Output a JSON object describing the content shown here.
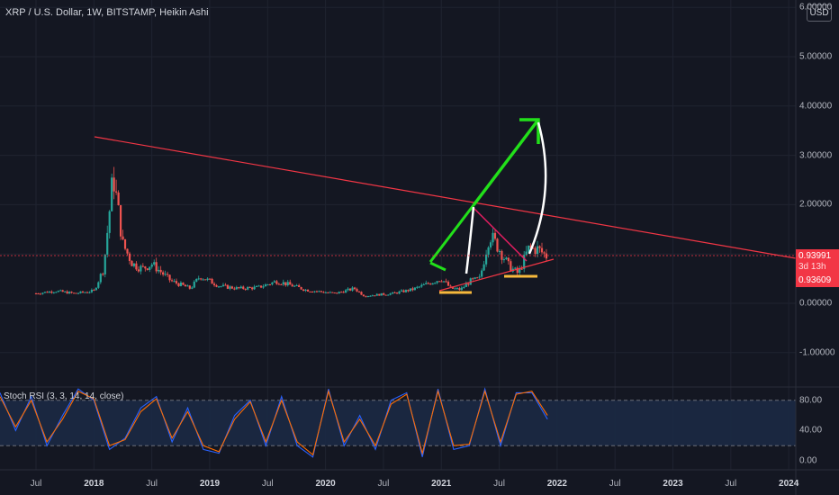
{
  "header": {
    "title": "XRP / U.S. Dollar, 1W, BITSTAMP, Heikin Ashi",
    "currency": "USD"
  },
  "price_axis": {
    "ticks": [
      "6.00000",
      "5.00000",
      "4.00000",
      "3.00000",
      "2.00000",
      "0.00000",
      "-1.00000"
    ]
  },
  "price_labels": {
    "last": "0.93991",
    "countdown": "3d 13h",
    "low": "0.93609"
  },
  "oscillator": {
    "title": "Stoch RSI (3, 3, 14, 14, close)",
    "ticks": [
      "80.00",
      "40.00",
      "0.00"
    ]
  },
  "time_axis": {
    "ticks": [
      "Jul",
      "2018",
      "Jul",
      "2019",
      "Jul",
      "2020",
      "Jul",
      "2021",
      "Jul",
      "2022",
      "Jul",
      "2023",
      "Jul",
      "2024"
    ]
  },
  "colors": {
    "background": "#141722",
    "up_candle": "#26a69a",
    "down_candle": "#ef5350",
    "trendline": "#f23645",
    "projection_arrow": "#22e01a",
    "curve": "#ffffff",
    "support_marks": "#f7b93c",
    "stoch_k": "#2962ff",
    "stoch_d": "#ff6d00"
  },
  "chart_data": [
    {
      "type": "candlestick",
      "title": "XRP / U.S. Dollar, 1W, BITSTAMP, Heikin Ashi",
      "xlabel": "",
      "ylabel": "",
      "ylim": [
        -1.6,
        6.0
      ],
      "x_range": [
        "2017-05",
        "2024-01"
      ],
      "grid": true,
      "series": [
        {
          "name": "XRP / U.S. Dollar",
          "points": [
            {
              "date": "2017-05",
              "value": 0.2
            },
            {
              "date": "2017-07",
              "value": 0.25
            },
            {
              "date": "2017-09",
              "value": 0.2
            },
            {
              "date": "2017-11",
              "value": 0.25
            },
            {
              "date": "2017-12",
              "value": 0.7
            },
            {
              "date": "2018-01",
              "value": 2.6
            },
            {
              "date": "2018-02",
              "value": 1.2
            },
            {
              "date": "2018-03",
              "value": 0.8
            },
            {
              "date": "2018-04",
              "value": 0.7
            },
            {
              "date": "2018-05",
              "value": 0.8
            },
            {
              "date": "2018-07",
              "value": 0.45
            },
            {
              "date": "2018-09",
              "value": 0.3
            },
            {
              "date": "2018-10",
              "value": 0.55
            },
            {
              "date": "2018-12",
              "value": 0.35
            },
            {
              "date": "2019-02",
              "value": 0.3
            },
            {
              "date": "2019-04",
              "value": 0.32
            },
            {
              "date": "2019-06",
              "value": 0.45
            },
            {
              "date": "2019-09",
              "value": 0.27
            },
            {
              "date": "2019-12",
              "value": 0.2
            },
            {
              "date": "2020-02",
              "value": 0.3
            },
            {
              "date": "2020-03",
              "value": 0.15
            },
            {
              "date": "2020-06",
              "value": 0.2
            },
            {
              "date": "2020-08",
              "value": 0.28
            },
            {
              "date": "2020-11",
              "value": 0.5
            },
            {
              "date": "2020-12",
              "value": 0.3
            },
            {
              "date": "2021-01",
              "value": 0.28
            },
            {
              "date": "2021-02",
              "value": 0.45
            },
            {
              "date": "2021-03",
              "value": 0.5
            },
            {
              "date": "2021-04",
              "value": 1.4
            },
            {
              "date": "2021-05",
              "value": 1.1
            },
            {
              "date": "2021-06",
              "value": 0.75
            },
            {
              "date": "2021-07",
              "value": 0.6
            },
            {
              "date": "2021-08",
              "value": 1.1
            },
            {
              "date": "2021-09",
              "value": 1.1
            },
            {
              "date": "2021-10",
              "value": 0.94
            }
          ]
        }
      ]
    },
    {
      "type": "line",
      "title": "Stoch RSI (3, 3, 14, 14, close)",
      "xlabel": "",
      "ylabel": "",
      "ylim": [
        -10,
        100
      ],
      "x_range": [
        "2017-05",
        "2024-01"
      ],
      "bands": [
        20,
        80
      ],
      "series": [
        {
          "name": "K",
          "values": [
            90,
            40,
            85,
            20,
            60,
            95,
            80,
            15,
            30,
            70,
            85,
            25,
            70,
            15,
            10,
            60,
            80,
            20,
            85,
            20,
            5,
            95,
            20,
            60,
            15,
            80,
            90,
            5,
            95,
            15,
            20,
            95,
            20,
            90,
            90,
            55
          ]
        },
        {
          "name": "D",
          "values": [
            85,
            45,
            80,
            25,
            55,
            92,
            82,
            20,
            28,
            65,
            82,
            30,
            65,
            20,
            12,
            55,
            78,
            25,
            80,
            25,
            8,
            92,
            25,
            55,
            20,
            75,
            88,
            10,
            92,
            20,
            22,
            92,
            25,
            88,
            92,
            60
          ]
        }
      ]
    }
  ]
}
